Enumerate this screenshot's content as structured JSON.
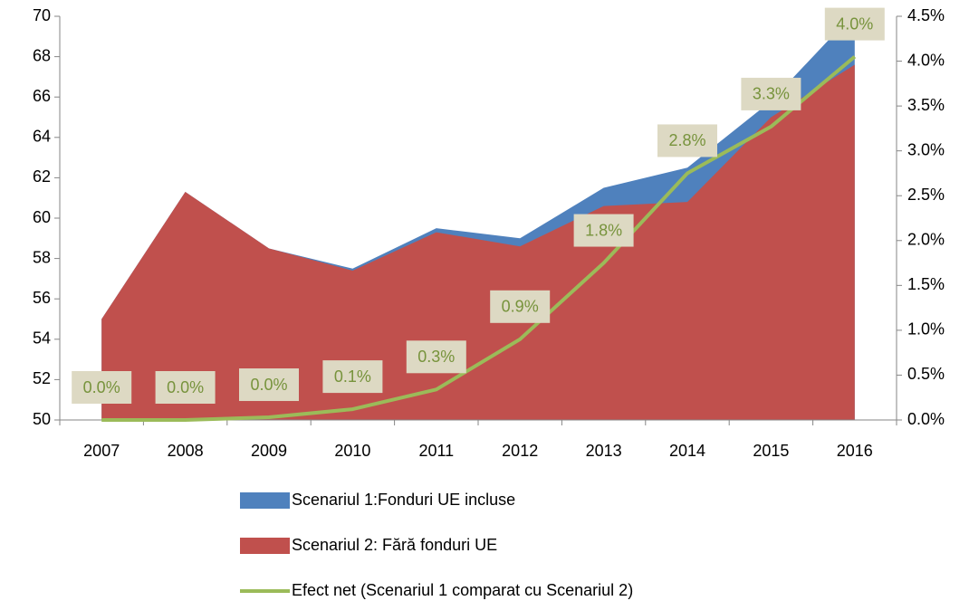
{
  "chart_data": {
    "type": "area-line",
    "categories": [
      "2007",
      "2008",
      "2009",
      "2010",
      "2011",
      "2012",
      "2013",
      "2014",
      "2015",
      "2016"
    ],
    "series": [
      {
        "name": "Scenariul 1:Fonduri UE incluse",
        "color": "#4f81bd",
        "kind": "area",
        "values": [
          55,
          61.3,
          58.5,
          57.5,
          59.5,
          59.0,
          61.5,
          62.5,
          65.8,
          70.2
        ]
      },
      {
        "name": "Scenariul 2: Fără fonduri UE",
        "color": "#c0504d",
        "kind": "area",
        "values": [
          55,
          61.3,
          58.5,
          57.4,
          59.3,
          58.6,
          60.6,
          60.8,
          65.0,
          67.6
        ]
      },
      {
        "name": "Efect net (Scenariul 1 comparat cu Scenariul 2)",
        "color": "#9bbb59",
        "kind": "line",
        "axis": "y2",
        "values": [
          0.0,
          0.0,
          0.03,
          0.12,
          0.34,
          0.9,
          1.75,
          2.75,
          3.27,
          4.05
        ],
        "value_labels": [
          "0.0%",
          "0.0%",
          "0.0%",
          "0.1%",
          "0.3%",
          "0.9%",
          "1.8%",
          "2.8%",
          "3.3%",
          "4.0%"
        ]
      }
    ],
    "ylim": [
      50,
      70
    ],
    "yticks": [
      50,
      52,
      54,
      56,
      58,
      60,
      62,
      64,
      66,
      68,
      70
    ],
    "y2lim": [
      0,
      4.5
    ],
    "y2ticks": [
      {
        "value": 0,
        "label": "0.0%"
      },
      {
        "value": 0.5,
        "label": "0.5%"
      },
      {
        "value": 1,
        "label": "1.0%"
      },
      {
        "value": 1.5,
        "label": "1.5%"
      },
      {
        "value": 2,
        "label": "2.0%"
      },
      {
        "value": 2.5,
        "label": "2.5%"
      },
      {
        "value": 3,
        "label": "3.0%"
      },
      {
        "value": 3.5,
        "label": "3.5%"
      },
      {
        "value": 4,
        "label": "4.0%"
      },
      {
        "value": 4.5,
        "label": "4.5%"
      }
    ],
    "legend": "bottom"
  }
}
